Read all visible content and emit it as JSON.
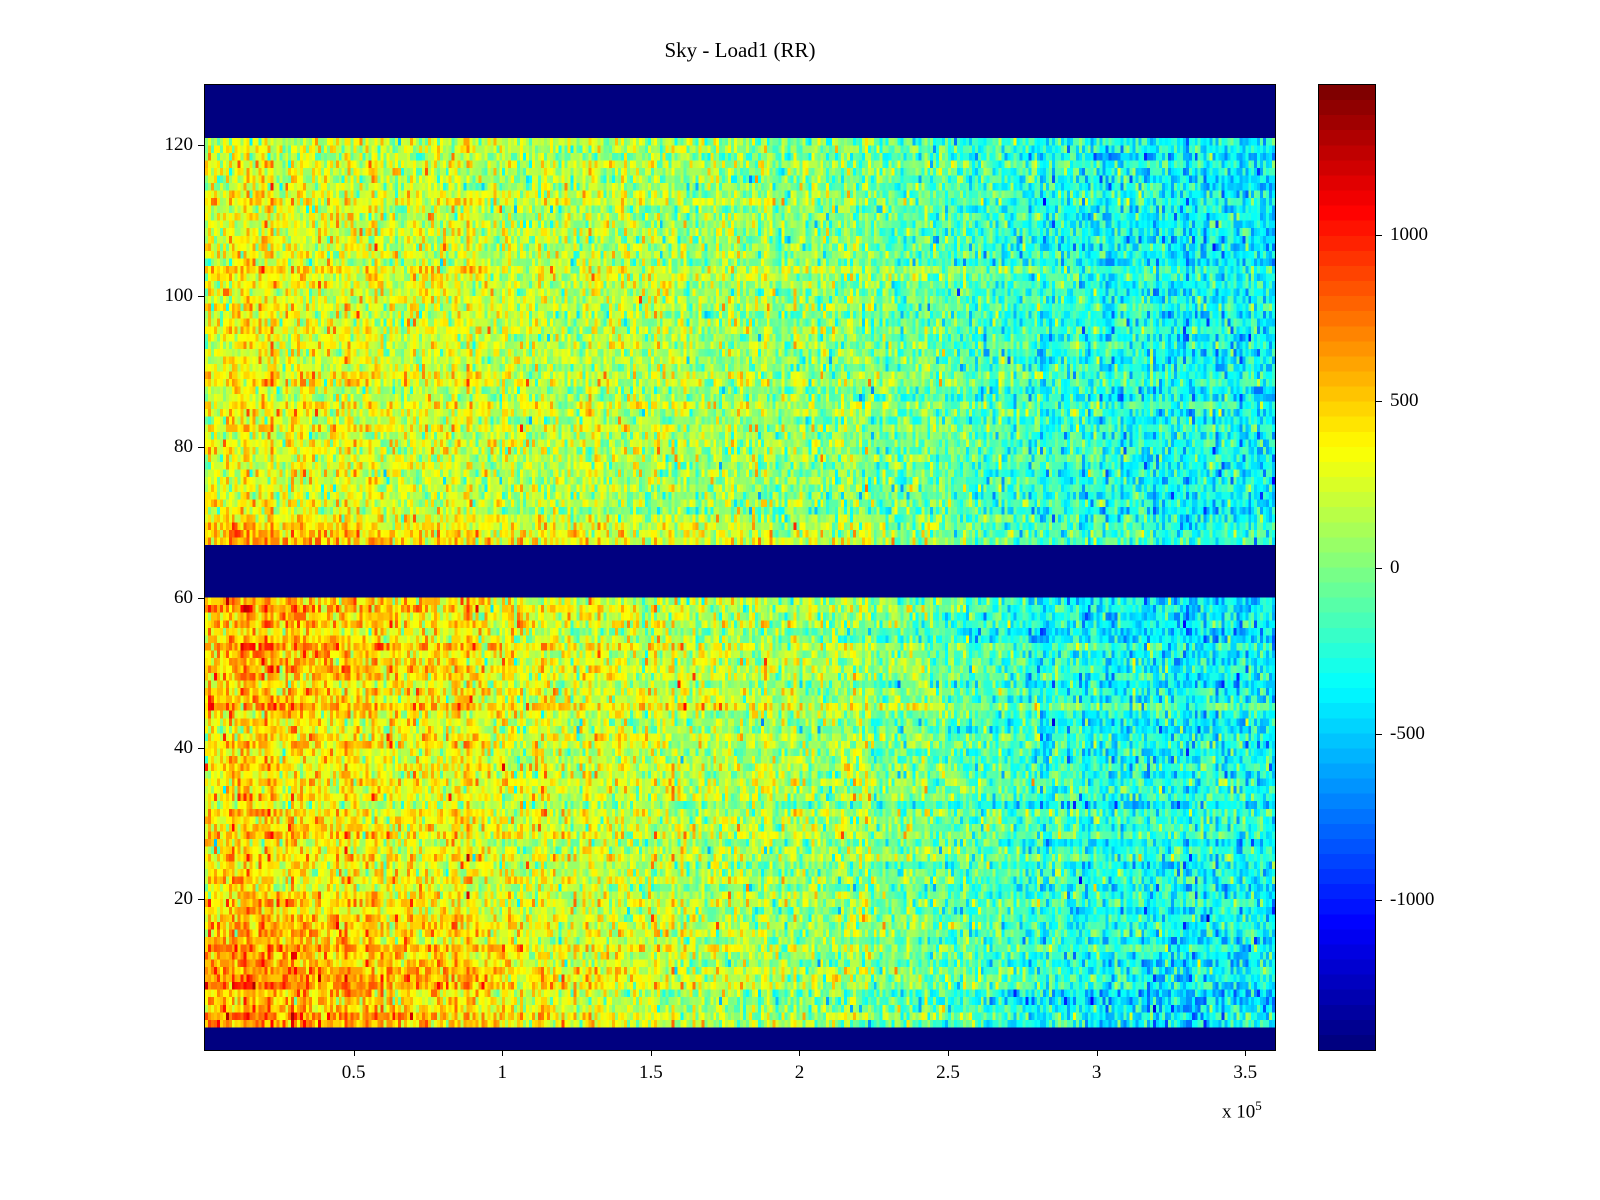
{
  "figure": {
    "title": "Sky - Load1 (RR)",
    "background_color": "#ffffff"
  },
  "chart_data": {
    "type": "heatmap",
    "title": "Sky - Load1 (RR)",
    "colormap": "jet",
    "x_axis": {
      "tick_labels": [
        "0.5",
        "1",
        "1.5",
        "2",
        "2.5",
        "3",
        "3.5"
      ],
      "tick_values": [
        0.5,
        1,
        1.5,
        2,
        2.5,
        3,
        3.5
      ],
      "exponent_base": "x 10",
      "exponent_power": "5",
      "range_1e5": [
        0,
        3.6
      ]
    },
    "y_axis": {
      "tick_labels": [
        "20",
        "40",
        "60",
        "80",
        "100",
        "120"
      ],
      "tick_values": [
        20,
        40,
        60,
        80,
        100,
        120
      ],
      "range": [
        0,
        128
      ]
    },
    "colorbar": {
      "tick_labels": [
        "1000",
        "500",
        "0",
        "-500",
        "-1000"
      ],
      "tick_values": [
        1000,
        500,
        0,
        -500,
        -1000
      ],
      "range": [
        -1450,
        1450
      ],
      "levels": 64
    },
    "grid": {
      "rows": 128,
      "cols": 360
    },
    "masked_row_bands": [
      [
        1,
        3
      ],
      [
        61,
        67
      ],
      [
        122,
        128
      ]
    ],
    "mean_field": {
      "description": "Approximate mean value field read from the image; rows bottom-to-top, columns left-to-right.",
      "row_centers": [
        8,
        20,
        35,
        50,
        58,
        75,
        92,
        108,
        120
      ],
      "col_centers_1e5": [
        0.05,
        0.45,
        0.85,
        1.25,
        1.65,
        2.05,
        2.45,
        2.85,
        3.25,
        3.6
      ],
      "values": [
        [
          680,
          620,
          480,
          320,
          180,
          60,
          -80,
          -320,
          -420,
          -380
        ],
        [
          480,
          420,
          320,
          220,
          140,
          40,
          -60,
          -240,
          -300,
          -320
        ],
        [
          420,
          380,
          300,
          220,
          160,
          80,
          -40,
          -220,
          -260,
          -280
        ],
        [
          520,
          470,
          340,
          240,
          160,
          60,
          -80,
          -300,
          -380,
          -340
        ],
        [
          620,
          560,
          420,
          260,
          160,
          60,
          -100,
          -360,
          -440,
          -400
        ],
        [
          320,
          280,
          220,
          160,
          100,
          40,
          -60,
          -220,
          -260,
          -280
        ],
        [
          340,
          300,
          240,
          170,
          110,
          50,
          -80,
          -240,
          -300,
          -320
        ],
        [
          360,
          320,
          260,
          190,
          130,
          60,
          -90,
          -260,
          -340,
          -320
        ],
        [
          280,
          240,
          200,
          150,
          90,
          20,
          -100,
          -260,
          -320,
          -360
        ]
      ]
    },
    "noise": {
      "cell_std": 200,
      "row_std": 70,
      "col_std": 60,
      "seed": 7
    }
  }
}
